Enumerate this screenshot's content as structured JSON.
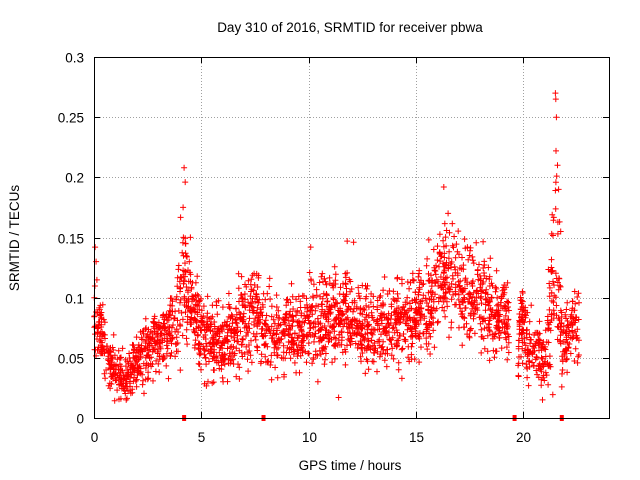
{
  "chart_data": {
    "type": "scatter",
    "title": "Day 310 of 2016, SRMTID for receiver pbwa",
    "xlabel": "GPS time / hours",
    "ylabel": "SRMTID / TECUs",
    "xlim": [
      0,
      24
    ],
    "ylim": [
      0,
      0.3
    ],
    "x_ticks": [
      0,
      5,
      10,
      15,
      20
    ],
    "x_tick_labels": [
      "0",
      "5",
      "10",
      "15",
      "20"
    ],
    "y_ticks": [
      0,
      0.05,
      0.1,
      0.15,
      0.2,
      0.25,
      0.3
    ],
    "y_tick_labels": [
      "0",
      "0.05",
      "0.1",
      "0.15",
      "0.2",
      "0.25",
      "0.3"
    ],
    "grid": true,
    "marker": "+",
    "series_color": "#ff0000",
    "axis_marks_x": [
      4.2,
      7.9,
      19.6,
      21.8
    ],
    "series": [
      {
        "name": "SRMTID",
        "envelope": {
          "x": [
            0.0,
            0.2,
            0.5,
            0.8,
            1.2,
            1.6,
            2.0,
            2.5,
            3.0,
            3.5,
            3.9,
            4.2,
            4.5,
            5.0,
            5.5,
            6.0,
            6.5,
            7.0,
            7.5,
            8.0,
            8.5,
            9.0,
            9.5,
            10.0,
            10.5,
            11.0,
            11.5,
            12.0,
            12.5,
            13.0,
            13.5,
            14.0,
            14.5,
            15.0,
            15.5,
            16.0,
            16.3,
            16.6,
            17.0,
            17.5,
            18.0,
            18.5,
            19.0,
            19.3,
            19.6,
            19.9,
            20.2,
            20.5,
            20.8,
            21.1,
            21.3,
            21.5,
            21.8,
            22.0,
            22.3,
            22.6
          ],
          "center": [
            0.085,
            0.07,
            0.06,
            0.04,
            0.035,
            0.035,
            0.045,
            0.058,
            0.068,
            0.072,
            0.08,
            0.12,
            0.1,
            0.07,
            0.065,
            0.062,
            0.065,
            0.08,
            0.085,
            0.075,
            0.072,
            0.075,
            0.07,
            0.075,
            0.08,
            0.085,
            0.08,
            0.085,
            0.075,
            0.075,
            0.08,
            0.078,
            0.082,
            0.085,
            0.09,
            0.11,
            0.125,
            0.12,
            0.105,
            0.1,
            0.095,
            0.09,
            0.085,
            0.08,
            0.0,
            0.085,
            0.06,
            0.055,
            0.05,
            0.055,
            0.11,
            0.13,
            0.065,
            0.07,
            0.08,
            0.07
          ],
          "spread": [
            0.03,
            0.025,
            0.02,
            0.015,
            0.012,
            0.012,
            0.015,
            0.018,
            0.02,
            0.022,
            0.025,
            0.035,
            0.03,
            0.022,
            0.02,
            0.02,
            0.02,
            0.025,
            0.025,
            0.022,
            0.022,
            0.022,
            0.022,
            0.022,
            0.025,
            0.025,
            0.025,
            0.025,
            0.022,
            0.022,
            0.022,
            0.022,
            0.022,
            0.025,
            0.025,
            0.028,
            0.03,
            0.03,
            0.025,
            0.025,
            0.025,
            0.025,
            0.025,
            0.022,
            0.0,
            0.025,
            0.018,
            0.018,
            0.018,
            0.018,
            0.05,
            0.06,
            0.02,
            0.02,
            0.02,
            0.02
          ]
        },
        "peaks": [
          {
            "x": 4.2,
            "y": 0.208
          },
          {
            "x": 4.25,
            "y": 0.196
          },
          {
            "x": 4.15,
            "y": 0.175
          },
          {
            "x": 16.3,
            "y": 0.192
          },
          {
            "x": 16.5,
            "y": 0.17
          },
          {
            "x": 21.5,
            "y": 0.27
          },
          {
            "x": 21.52,
            "y": 0.265
          },
          {
            "x": 21.55,
            "y": 0.25
          },
          {
            "x": 21.53,
            "y": 0.222
          },
          {
            "x": 21.6,
            "y": 0.21
          },
          {
            "x": 21.65,
            "y": 0.19
          },
          {
            "x": 21.7,
            "y": 0.163
          },
          {
            "x": 21.75,
            "y": 0.155
          },
          {
            "x": 0.05,
            "y": 0.142
          },
          {
            "x": 0.1,
            "y": 0.13
          },
          {
            "x": 10.1,
            "y": 0.142
          },
          {
            "x": 11.8,
            "y": 0.147
          },
          {
            "x": 12.1,
            "y": 0.146
          },
          {
            "x": 15.6,
            "y": 0.148
          },
          {
            "x": 17.4,
            "y": 0.142
          },
          {
            "x": 1.5,
            "y": 0.015
          },
          {
            "x": 11.4,
            "y": 0.017
          },
          {
            "x": 20.9,
            "y": 0.015
          }
        ],
        "point_count": 2600,
        "gap_x": [
          19.35,
          19.75
        ]
      }
    ]
  }
}
